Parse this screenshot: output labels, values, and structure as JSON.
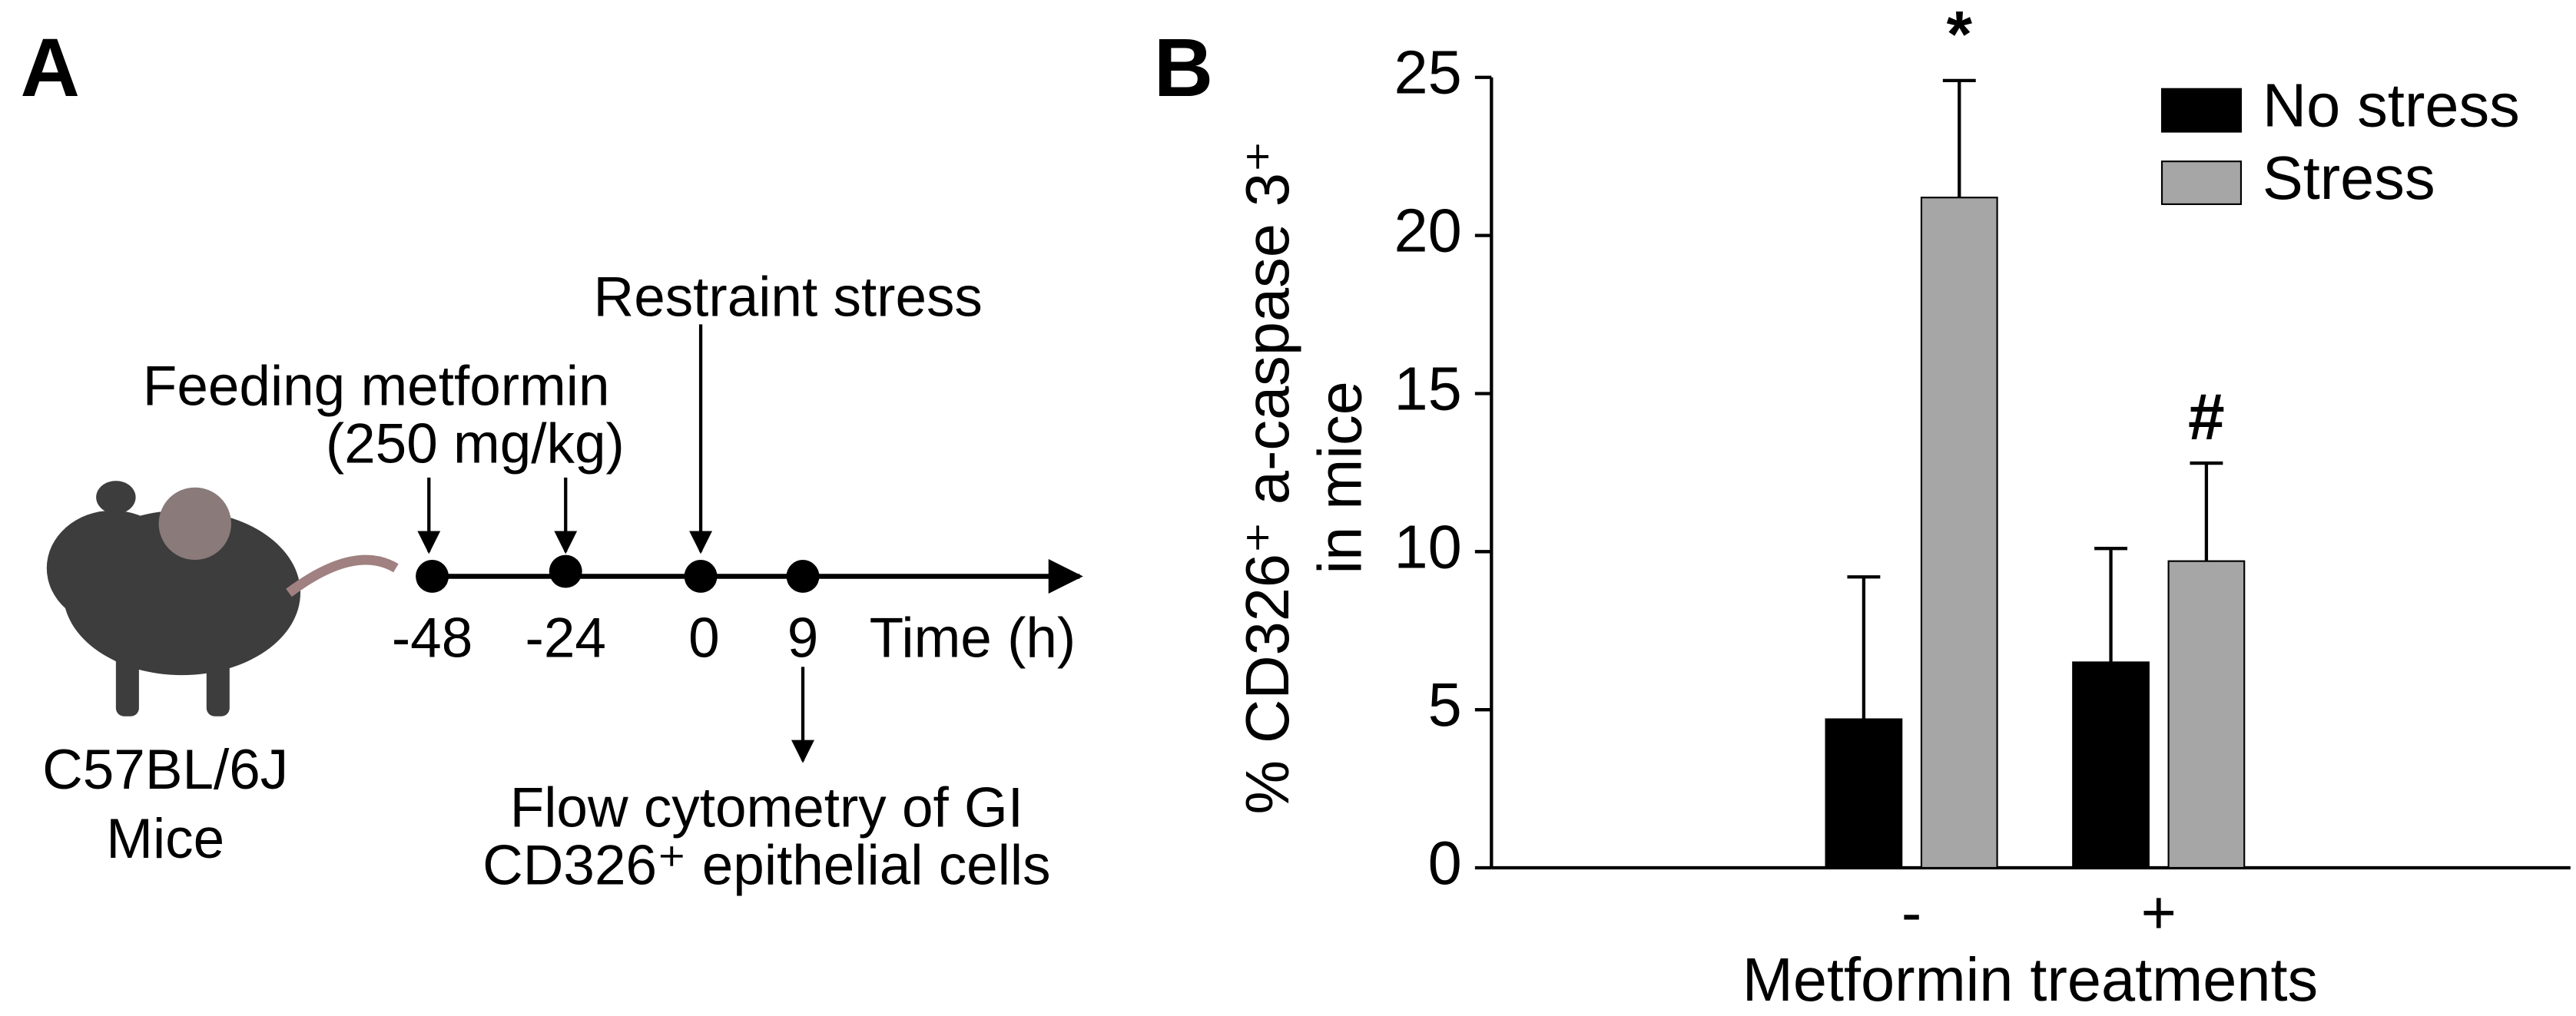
{
  "panel_a": {
    "label": "A",
    "feeding": "Feeding metformin",
    "dose": "(250 mg/kg)",
    "stress": "Restraint stress",
    "timepoints": [
      "-48",
      "-24",
      "0",
      "9"
    ],
    "time_label": "Time (h)",
    "readout": [
      "Flow cytometry of GI",
      "CD326⁺ epithelial cells"
    ],
    "subject": [
      "C57BL/6J",
      "Mice"
    ]
  },
  "chart_data": {
    "type": "bar",
    "panel_label": "B",
    "y_label": [
      "% CD326⁺ a-caspase 3⁺",
      "in mice"
    ],
    "x_label": "Metformin treatments",
    "categories": [
      "-",
      "+"
    ],
    "series": [
      {
        "name": "No stress",
        "color": "#000000",
        "values": [
          4.7,
          6.5
        ],
        "errors": [
          4.5,
          3.6
        ]
      },
      {
        "name": "Stress",
        "color": "#a6a6a6",
        "values": [
          21.2,
          9.7
        ],
        "errors": [
          3.7,
          3.1
        ],
        "markers": [
          "*",
          "#"
        ]
      }
    ],
    "ylim": [
      0,
      25
    ],
    "yticks": [
      0,
      5,
      10,
      15,
      20,
      25
    ],
    "legend": "upper right"
  }
}
